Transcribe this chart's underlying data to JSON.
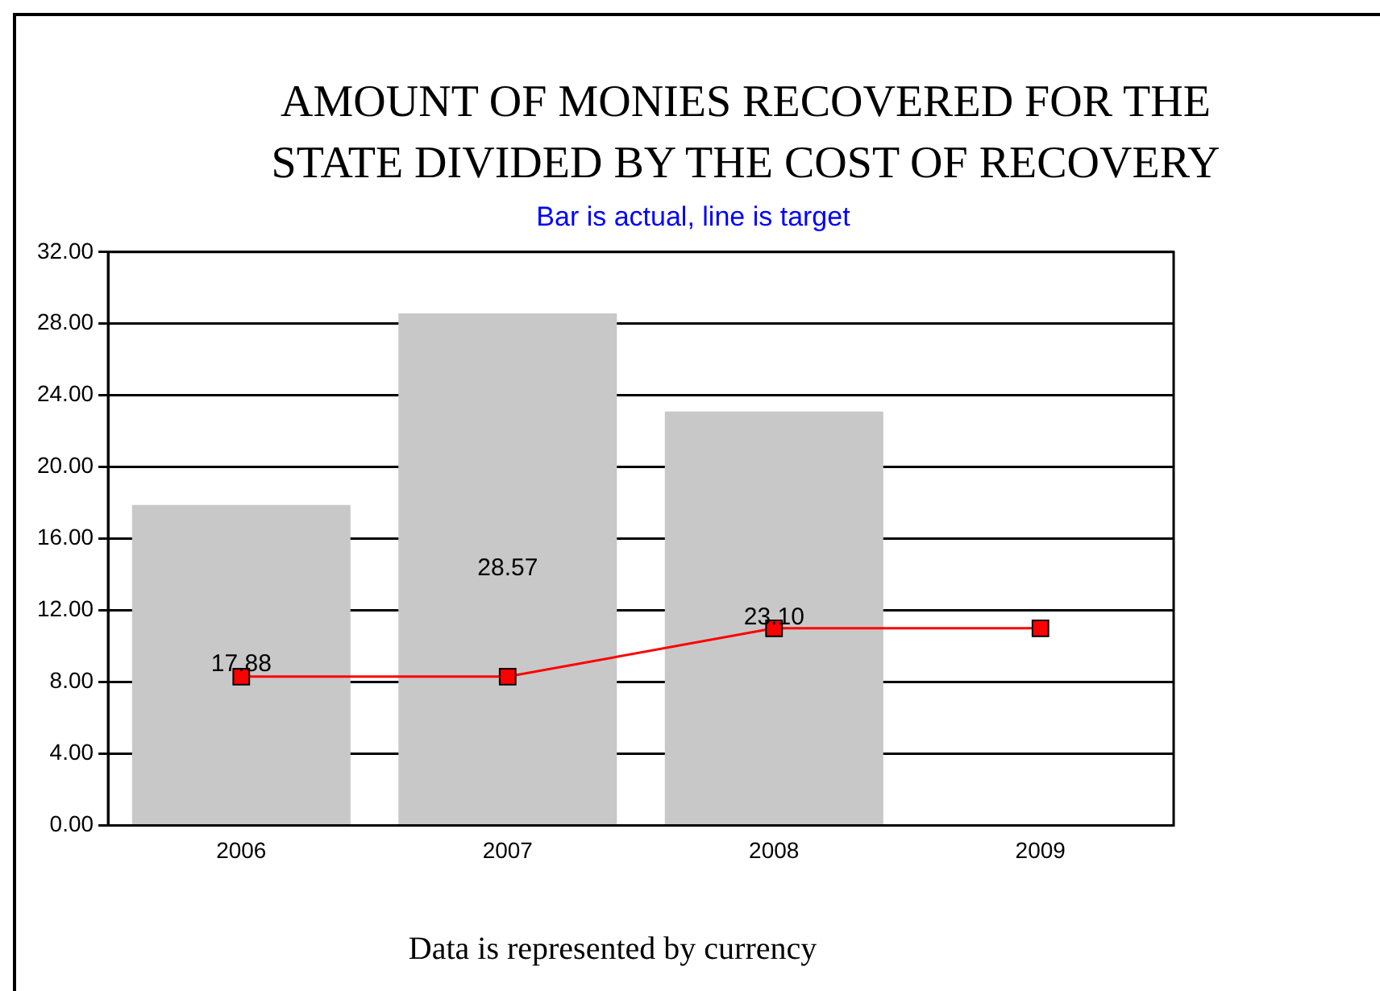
{
  "chart_data": {
    "type": "bar",
    "title": "AMOUNT OF MONIES RECOVERED FOR THE STATE DIVIDED BY THE COST OF RECOVERY",
    "subtitle": "Bar is actual, line is target",
    "annotations": [
      "Data is represented by currency"
    ],
    "categories": [
      "2006",
      "2007",
      "2008",
      "2009"
    ],
    "series": [
      {
        "color": "#c8c8c8",
        "values": [
          17.88,
          28.57,
          23.1,
          null
        ],
        "value_labels": [
          "17.88",
          "28.57",
          "23.10",
          null
        ]
      },
      {
        "type": "line",
        "color": "#ff0000",
        "values": [
          8.3,
          8.3,
          11,
          11
        ],
        "marker": "square"
      }
    ],
    "ylim": [
      0,
      32
    ],
    "yticks": [
      {
        "value": 0,
        "label": "0.00"
      },
      {
        "value": 4,
        "label": "4.00"
      },
      {
        "value": 8,
        "label": "8.00"
      },
      {
        "value": 12,
        "label": "12.00"
      },
      {
        "value": 16,
        "label": "16.00"
      },
      {
        "value": 20,
        "label": "20.00"
      },
      {
        "value": 24,
        "label": "24.00"
      },
      {
        "value": 28,
        "label": "28.00"
      },
      {
        "value": 32,
        "label": "32.00"
      }
    ],
    "grid": "y",
    "legend": false
  }
}
